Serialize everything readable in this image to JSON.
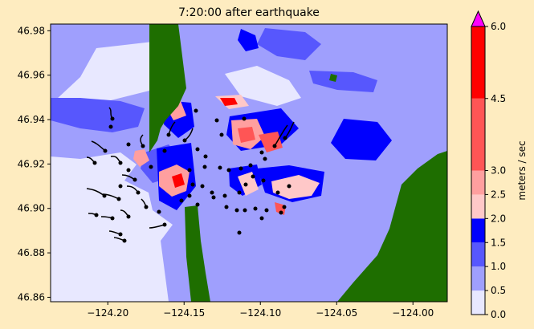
{
  "chart_data": {
    "type": "heatmap",
    "title": "7:20:00 after earthquake",
    "xlim": [
      -124.2375,
      -123.9775
    ],
    "ylim": [
      46.858,
      46.983
    ],
    "x_ticks": [
      -124.2,
      -124.15,
      -124.1,
      -124.05,
      -124.0
    ],
    "x_tick_labels": [
      "−124.20",
      "−124.15",
      "−124.10",
      "−124.05",
      "−124.00"
    ],
    "y_ticks": [
      46.86,
      46.88,
      46.9,
      46.92,
      46.94,
      46.96,
      46.98
    ],
    "y_tick_labels": [
      "46.86",
      "46.88",
      "46.90",
      "46.92",
      "46.94",
      "46.96",
      "46.98"
    ],
    "colorbar": {
      "label": "meters / sec",
      "levels": [
        0.0,
        0.5,
        1.0,
        1.5,
        2.0,
        2.5,
        3.0,
        4.5,
        6.0
      ],
      "level_labels": [
        "0.0",
        "0.5",
        "1.0",
        "1.5",
        "2.0",
        "2.5",
        "3.0",
        "4.5",
        "6.0"
      ],
      "colors": [
        "#e8e8ff",
        "#9f9ffd",
        "#5757fd",
        "#0000fe",
        "#ffc8c8",
        "#ff9f9f",
        "#ff5555",
        "#ff0000"
      ],
      "extend_color": "#ff00ff"
    },
    "land_color": "#1e6e00",
    "marker_color": "#000000"
  }
}
